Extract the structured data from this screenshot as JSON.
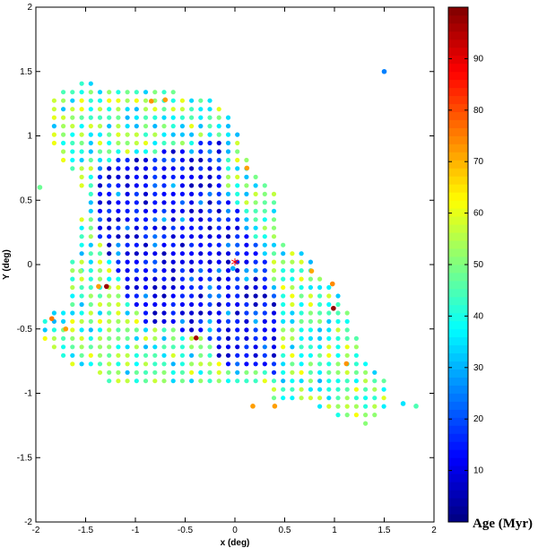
{
  "chart_data": {
    "type": "scatter",
    "xlabel": "x (deg)",
    "ylabel": "Y (deg)",
    "xlim": [
      -2,
      2
    ],
    "ylim": [
      -2,
      2
    ],
    "xticks": [
      "-2",
      "-1.5",
      "-1",
      "-0.5",
      "0",
      "0.5",
      "1",
      "1.5",
      "2"
    ],
    "yticks": [
      "-2",
      "-1.5",
      "-1",
      "-0.5",
      "0",
      "0.5",
      "1",
      "1.5",
      "2"
    ],
    "colorbar": {
      "label": "Age (Myr)",
      "range": [
        0,
        100
      ],
      "ticks": [
        "10",
        "20",
        "30",
        "40",
        "50",
        "60",
        "70",
        "80",
        "90"
      ],
      "colormap": "jet"
    },
    "grid": false,
    "marker_center": {
      "x": 0.0,
      "y": 0.0,
      "symbol": "*",
      "color": "#ff0000"
    },
    "region": {
      "x_step": 0.092,
      "y_step": 0.066,
      "young_core": [
        [
          -1.35,
          0.8
        ],
        [
          -0.55,
          0.9
        ],
        [
          -0.1,
          1.0
        ],
        [
          -0.1,
          0.65
        ],
        [
          0.05,
          0.4
        ],
        [
          0.45,
          -0.2
        ],
        [
          0.45,
          -0.85
        ],
        [
          -0.1,
          -0.8
        ],
        [
          -0.3,
          -0.55
        ],
        [
          -0.9,
          -0.45
        ],
        [
          -1.05,
          -0.3
        ],
        [
          -1.3,
          0.1
        ],
        [
          -1.45,
          0.4
        ]
      ],
      "outer_envelope": [
        [
          -1.9,
          1.25
        ],
        [
          -1.55,
          1.45
        ],
        [
          -1.2,
          1.35
        ],
        [
          -0.6,
          1.35
        ],
        [
          -0.3,
          1.3
        ],
        [
          0.0,
          1.15
        ],
        [
          0.05,
          0.9
        ],
        [
          0.4,
          0.55
        ],
        [
          0.5,
          0.1
        ],
        [
          0.7,
          0.1
        ],
        [
          0.9,
          -0.1
        ],
        [
          1.2,
          -0.4
        ],
        [
          1.25,
          -0.7
        ],
        [
          1.5,
          -0.85
        ],
        [
          1.55,
          -1.05
        ],
        [
          1.35,
          -1.25
        ],
        [
          1.0,
          -1.2
        ],
        [
          0.75,
          -1.05
        ],
        [
          0.4,
          -1.05
        ],
        [
          0.3,
          -0.95
        ],
        [
          -0.3,
          -0.95
        ],
        [
          -0.8,
          -0.95
        ],
        [
          -1.15,
          -0.95
        ],
        [
          -1.4,
          -0.85
        ],
        [
          -1.7,
          -0.75
        ],
        [
          -1.9,
          -0.6
        ],
        [
          -2.0,
          -0.45
        ],
        [
          -1.7,
          -0.3
        ],
        [
          -1.6,
          0.2
        ],
        [
          -1.5,
          0.55
        ],
        [
          -1.8,
          0.9
        ],
        [
          -1.9,
          1.1
        ]
      ]
    },
    "points": [
      {
        "x": 1.5,
        "y": 1.5,
        "age": 25
      },
      {
        "x": -0.84,
        "y": 1.27,
        "age": 73
      },
      {
        "x": -0.7,
        "y": 1.28,
        "age": 72
      },
      {
        "x": 0.12,
        "y": 0.75,
        "age": 72
      },
      {
        "x": 0.77,
        "y": -0.05,
        "age": 71
      },
      {
        "x": 0.98,
        "y": -0.15,
        "age": 74
      },
      {
        "x": 0.99,
        "y": -0.34,
        "age": 98
      },
      {
        "x": -1.29,
        "y": -0.17,
        "age": 97
      },
      {
        "x": -1.37,
        "y": -0.17,
        "age": 72
      },
      {
        "x": -1.84,
        "y": -0.42,
        "age": 76
      },
      {
        "x": -1.7,
        "y": -0.5,
        "age": 72
      },
      {
        "x": -0.39,
        "y": -0.57,
        "age": 96
      },
      {
        "x": 0.18,
        "y": -1.1,
        "age": 72
      },
      {
        "x": 0.4,
        "y": -1.1,
        "age": 72
      },
      {
        "x": 1.12,
        "y": -0.77,
        "age": 73
      },
      {
        "x": 1.69,
        "y": -1.08,
        "age": 35
      },
      {
        "x": 1.82,
        "y": -1.1,
        "age": 45
      },
      {
        "x": -1.96,
        "y": 0.6,
        "age": 48
      },
      {
        "x": -1.55,
        "y": -0.05,
        "age": 52
      },
      {
        "x": -0.02,
        "y": -0.03,
        "age": 30
      }
    ]
  }
}
